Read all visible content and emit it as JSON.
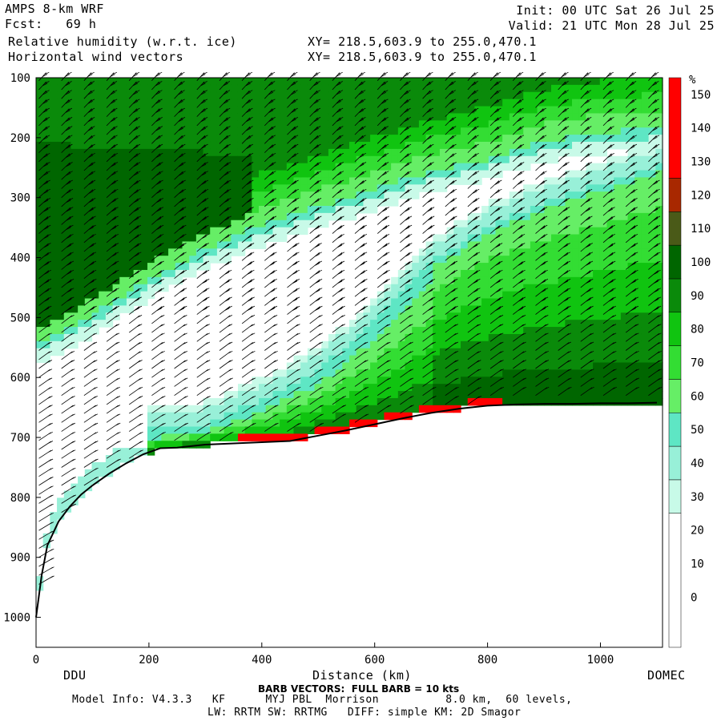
{
  "header": {
    "model": "AMPS 8-km WRF",
    "forecast": "Fcst:   69 h",
    "field1": "Relative humidity (w.r.t. ice)",
    "field2": "Horizontal wind vectors",
    "init": "Init: 00 UTC Sat 26 Jul 25",
    "valid": "Valid: 21 UTC Mon 28 Jul 25",
    "xy1": "XY= 218.5,603.9 to 255.0,470.1",
    "xy2": "XY= 218.5,603.9 to 255.0,470.1"
  },
  "footer": {
    "barb_note": "BARB VECTORS:  FULL BARB = 10 kts",
    "model_info": "Model Info: V4.3.3   KF      MYJ PBL  Morrison          8.0 km,  60 levels,",
    "physics": "LW: RRTM SW: RRTMG   DIFF: simple KM: 2D Smagor"
  },
  "colors": {
    "background": "#ffffff",
    "terrain_line": "#000000"
  },
  "chart_data": {
    "type": "heatmap",
    "title": "Relative humidity (w.r.t. ice)",
    "xlabel": "Distance (km)",
    "ylabel": "",
    "x_ticks": [
      0,
      200,
      400,
      600,
      800,
      1000
    ],
    "y_ticks": [
      100,
      200,
      300,
      400,
      500,
      600,
      700,
      800,
      900,
      1000
    ],
    "xlim": [
      0,
      1110
    ],
    "ylim": [
      1050,
      100
    ],
    "x_endpoint_labels": [
      "DDU",
      "DOMEC"
    ],
    "colorbar": {
      "unit": "%",
      "tick_labels": [
        0,
        10,
        20,
        30,
        40,
        50,
        60,
        70,
        80,
        90,
        100,
        110,
        120,
        130,
        140,
        150
      ],
      "levels": [
        {
          "from": -10,
          "to": 30,
          "color": "#ffffff"
        },
        {
          "from": 30,
          "to": 40,
          "color": "#c8fae8"
        },
        {
          "from": 40,
          "to": 50,
          "color": "#98f0d8"
        },
        {
          "from": 50,
          "to": 60,
          "color": "#5ee6c4"
        },
        {
          "from": 60,
          "to": 70,
          "color": "#66ee66"
        },
        {
          "from": 70,
          "to": 80,
          "color": "#33dd33"
        },
        {
          "from": 80,
          "to": 90,
          "color": "#10c410"
        },
        {
          "from": 90,
          "to": 100,
          "color": "#0a8a0a"
        },
        {
          "from": 100,
          "to": 110,
          "color": "#006600"
        },
        {
          "from": 110,
          "to": 120,
          "color": "#4a5a18"
        },
        {
          "from": 120,
          "to": 130,
          "color": "#a82800"
        },
        {
          "from": 130,
          "to": 160,
          "color": "#ff0000"
        }
      ]
    },
    "surface_pressure": {
      "x_km": [
        0,
        10,
        20,
        40,
        60,
        80,
        100,
        130,
        160,
        190,
        220,
        250,
        300,
        350,
        400,
        450,
        500,
        550,
        600,
        650,
        700,
        750,
        800,
        850,
        900,
        950,
        1000,
        1050,
        1100
      ],
      "p_hpa": [
        1000,
        930,
        880,
        840,
        815,
        795,
        780,
        760,
        743,
        728,
        718,
        717,
        712,
        710,
        708,
        706,
        697,
        688,
        678,
        668,
        659,
        652,
        647,
        645,
        644,
        644,
        643,
        643,
        642
      ]
    },
    "rh_layers": [
      {
        "name": "upper moist layer",
        "x_km": [
          0,
          100,
          200,
          300,
          400,
          500,
          600,
          700,
          800,
          900,
          1000,
          1100
        ],
        "p_top_hpa": [
          105,
          105,
          105,
          105,
          105,
          105,
          105,
          105,
          105,
          105,
          105,
          105
        ],
        "p_bottom_hpa": [
          560,
          510,
          450,
          400,
          360,
          330,
          300,
          270,
          250,
          220,
          205,
          200
        ]
      },
      {
        "name": "lower moist layer",
        "x_km": [
          200,
          300,
          400,
          500,
          600,
          700,
          800,
          900,
          1000,
          1100
        ],
        "p_top_hpa": [
          700,
          690,
          650,
          600,
          520,
          420,
          360,
          320,
          290,
          260
        ],
        "p_bottom_hpa": [
          718,
          712,
          708,
          697,
          678,
          659,
          647,
          644,
          643,
          642
        ]
      }
    ]
  }
}
